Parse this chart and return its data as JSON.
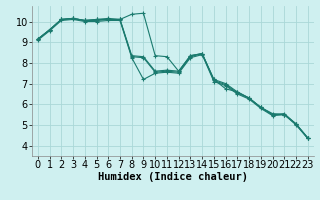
{
  "xlabel": "Humidex (Indice chaleur)",
  "ylabel": "",
  "background_color": "#cff0f0",
  "grid_color": "#aad8d8",
  "line_color": "#1a7a6e",
  "x_values": [
    0,
    1,
    2,
    3,
    4,
    5,
    6,
    7,
    8,
    9,
    10,
    11,
    12,
    13,
    14,
    15,
    16,
    17,
    18,
    19,
    20,
    21,
    22,
    23
  ],
  "series": [
    [
      9.15,
      9.6,
      10.1,
      10.15,
      10.05,
      10.1,
      10.15,
      10.1,
      10.35,
      10.4,
      8.35,
      8.3,
      7.6,
      8.35,
      8.45,
      7.2,
      6.75,
      6.6,
      6.3,
      5.85,
      5.55,
      5.5,
      5.05,
      4.35
    ],
    [
      9.15,
      9.6,
      10.1,
      10.15,
      10.05,
      10.1,
      10.1,
      10.1,
      8.35,
      8.3,
      7.6,
      7.65,
      7.6,
      8.35,
      8.45,
      7.2,
      7.0,
      6.6,
      6.3,
      5.85,
      5.5,
      5.55,
      5.05,
      4.38
    ],
    [
      9.15,
      9.6,
      10.1,
      10.15,
      10.05,
      10.05,
      10.1,
      10.1,
      8.3,
      8.25,
      7.55,
      7.6,
      7.55,
      8.3,
      8.45,
      7.15,
      6.95,
      6.55,
      6.3,
      5.85,
      5.5,
      5.5,
      5.05,
      4.38
    ],
    [
      9.1,
      9.55,
      10.05,
      10.1,
      10.0,
      10.0,
      10.05,
      10.05,
      8.25,
      7.2,
      7.5,
      7.55,
      7.5,
      8.25,
      8.4,
      7.1,
      6.9,
      6.5,
      6.25,
      5.8,
      5.45,
      5.5,
      5.0,
      4.35
    ]
  ],
  "xlim": [
    -0.5,
    23.5
  ],
  "ylim": [
    3.5,
    10.75
  ],
  "yticks": [
    4,
    5,
    6,
    7,
    8,
    9,
    10
  ],
  "xticks": [
    0,
    1,
    2,
    3,
    4,
    5,
    6,
    7,
    8,
    9,
    10,
    11,
    12,
    13,
    14,
    15,
    16,
    17,
    18,
    19,
    20,
    21,
    22,
    23
  ],
  "tick_fontsize": 7,
  "label_fontsize": 7.5
}
